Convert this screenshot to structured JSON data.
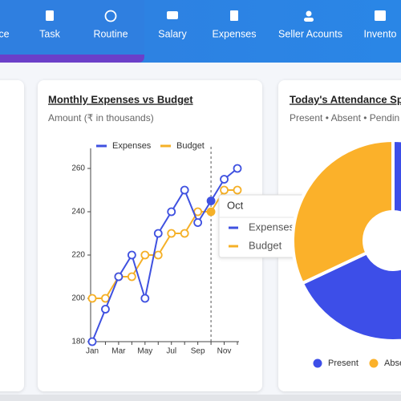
{
  "nav": {
    "items": [
      "ce",
      "Task",
      "Routine",
      "Salary",
      "Expenses",
      "Seller Acounts",
      "Invento"
    ]
  },
  "chart_data": [
    {
      "type": "line",
      "title": "Monthly Expenses vs Budget",
      "subtitle": "Amount (₹ in thousands)",
      "categories": [
        "Jan",
        null,
        "Mar",
        null,
        "May",
        null,
        "Jul",
        null,
        "Sep",
        null,
        "Nov",
        null
      ],
      "series": [
        {
          "name": "Expenses",
          "color": "#3f51e0",
          "values": [
            180,
            195,
            210,
            220,
            200,
            230,
            240,
            250,
            235,
            245,
            255,
            260
          ]
        },
        {
          "name": "Budget",
          "color": "#f5b027",
          "values": [
            200,
            200,
            210,
            210,
            220,
            220,
            230,
            230,
            240,
            240,
            250,
            250
          ]
        }
      ],
      "ylim": [
        180,
        260
      ],
      "yticks": [
        180,
        200,
        220,
        240,
        260
      ],
      "tooltip_title": "Oct"
    },
    {
      "type": "pie",
      "title": "Today's Attendance Sp",
      "subtitle": "Present • Absent • Pendin",
      "categories": [
        null,
        "Present",
        "Abse"
      ],
      "values": [
        30,
        38,
        32
      ],
      "colors": [
        "#3d4ee8",
        "#3d4ee8",
        "#fbb12a"
      ]
    }
  ]
}
